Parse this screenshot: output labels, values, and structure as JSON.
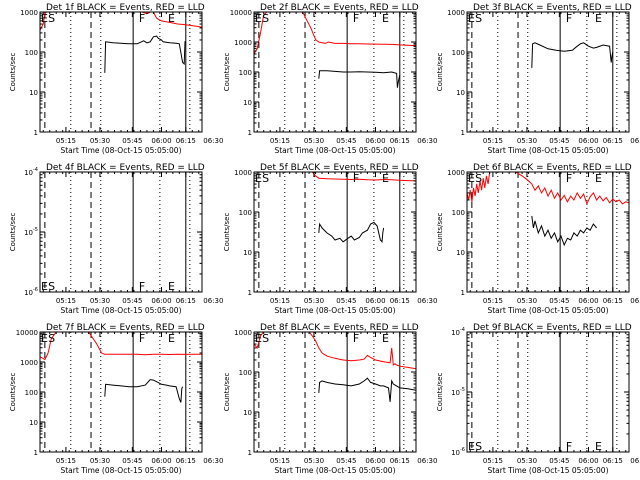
{
  "figure": {
    "shared": {
      "x_axis_label": "Start Time (08-Oct-15 05:05:00)",
      "x_tick_labels": [
        "05:15",
        "05:30",
        "05:45",
        "06:00",
        "06:15",
        "06:30"
      ],
      "y_axis_label": "Counts/sec"
    },
    "colors": {
      "events": "#000000",
      "lld": "#ff0000",
      "frame": "#000000",
      "background": "#ffffff"
    }
  },
  "chart_data": [
    {
      "type": "line",
      "id": "det1f",
      "title": "Det 1f BLACK = Events, RED = LLD",
      "xlim": [
        0,
        100
      ],
      "y_scale": "log",
      "ylim": [
        1,
        1000
      ],
      "y_tick_labels": [
        "1",
        "10",
        "100",
        "1000"
      ],
      "markers": [
        {
          "label": "E",
          "x": 0
        },
        {
          "label": "S",
          "x": 5
        },
        {
          "label": "F",
          "x": 61
        },
        {
          "label": "E",
          "x": 79
        }
      ],
      "series": [
        {
          "color": "#ff0000",
          "x": [
            0,
            2,
            3,
            4,
            5,
            6,
            8,
            10,
            14,
            20,
            30,
            35,
            40,
            45,
            50,
            55,
            60,
            63,
            66,
            68,
            70,
            72,
            75,
            80,
            85,
            90,
            95,
            100
          ],
          "y": [
            350,
            500,
            900,
            1000,
            1000,
            1000,
            1000,
            1000,
            1000,
            1000,
            1000,
            1000,
            1000,
            1000,
            1000,
            1000,
            1000,
            1000,
            900,
            1100,
            1000,
            700,
            600,
            550,
            500,
            480,
            450,
            420
          ]
        },
        {
          "color": "#000000",
          "x": [
            40,
            40.5,
            45,
            50,
            55,
            60,
            62,
            64,
            66,
            68,
            70,
            72,
            73,
            75,
            76,
            80,
            84,
            86,
            88,
            89,
            89.5,
            90
          ],
          "y": [
            30,
            180,
            170,
            165,
            160,
            160,
            175,
            190,
            170,
            180,
            240,
            250,
            220,
            200,
            180,
            170,
            165,
            160,
            55,
            50,
            180,
            175
          ]
        }
      ]
    },
    {
      "type": "line",
      "id": "det2f",
      "title": "Det 2f BLACK = Events, RED = LLD",
      "xlim": [
        0,
        100
      ],
      "y_scale": "log",
      "ylim": [
        1,
        10000
      ],
      "y_tick_labels": [
        "1",
        "10",
        "100",
        "1000",
        "10000"
      ],
      "markers": [
        {
          "label": "E",
          "x": 0
        },
        {
          "label": "S",
          "x": 5
        },
        {
          "label": "F",
          "x": 61
        },
        {
          "label": "E",
          "x": 79
        }
      ],
      "series": [
        {
          "color": "#ff0000",
          "x": [
            0,
            2,
            4,
            6,
            8,
            10,
            15,
            20,
            25,
            30,
            35,
            38,
            40,
            42,
            44,
            46,
            48,
            50,
            55,
            60,
            65,
            70,
            75,
            80,
            85,
            90,
            95,
            100
          ],
          "y": [
            400,
            600,
            2000,
            8000,
            10000,
            10000,
            10000,
            10000,
            10000,
            10000,
            3000,
            1200,
            1000,
            950,
            900,
            1000,
            950,
            900,
            900,
            880,
            870,
            860,
            850,
            840,
            830,
            800,
            780,
            760
          ]
        },
        {
          "color": "#000000",
          "x": [
            40,
            40.5,
            45,
            50,
            55,
            60,
            65,
            70,
            75,
            80,
            85,
            88,
            88.5,
            89,
            90
          ],
          "y": [
            60,
            110,
            110,
            105,
            100,
            100,
            102,
            100,
            98,
            95,
            100,
            90,
            30,
            45,
            80
          ]
        }
      ]
    },
    {
      "type": "line",
      "id": "det3f",
      "title": "Det 3f BLACK = Events, RED = LLD",
      "xlim": [
        0,
        100
      ],
      "y_scale": "log",
      "ylim": [
        1,
        1000
      ],
      "y_tick_labels": [
        "1",
        "10",
        "100",
        "1000"
      ],
      "markers": [
        {
          "label": "E",
          "x": 0
        },
        {
          "label": "S",
          "x": 5
        },
        {
          "label": "F",
          "x": 61
        },
        {
          "label": "E",
          "x": 79
        }
      ],
      "series": [
        {
          "color": "#000000",
          "x": [
            40,
            40.5,
            42,
            45,
            50,
            55,
            60,
            65,
            68,
            70,
            72,
            75,
            78,
            80,
            84,
            88,
            89,
            89.5,
            90
          ],
          "y": [
            40,
            160,
            170,
            150,
            120,
            110,
            105,
            110,
            140,
            160,
            170,
            140,
            125,
            130,
            150,
            140,
            55,
            80,
            100
          ]
        }
      ]
    },
    {
      "type": "line",
      "id": "det4f",
      "title": "Det 4f BLACK = Events, RED = LLD",
      "xlim": [
        0,
        100
      ],
      "y_scale": "log",
      "ylim": [
        1e-06,
        0.0001
      ],
      "y_tick_labels": [
        "10^-6",
        "10^-5",
        "10^-4"
      ],
      "markers": [
        {
          "label": "E",
          "x": 0
        },
        {
          "label": "S",
          "x": 5
        },
        {
          "label": "F",
          "x": 61
        },
        {
          "label": "E",
          "x": 79
        }
      ],
      "series": []
    },
    {
      "type": "line",
      "id": "det5f",
      "title": "Det 5f BLACK = Events, RED = LLD",
      "xlim": [
        0,
        100
      ],
      "y_scale": "log",
      "ylim": [
        1,
        1000
      ],
      "y_tick_labels": [
        "1",
        "10",
        "100",
        "1000"
      ],
      "markers": [
        {
          "label": "E",
          "x": 0
        },
        {
          "label": "S",
          "x": 5
        },
        {
          "label": "F",
          "x": 61
        },
        {
          "label": "E",
          "x": 79
        }
      ],
      "series": [
        {
          "color": "#ff0000",
          "x": [
            36,
            38,
            40,
            45,
            50,
            55,
            60,
            65,
            70,
            75,
            80,
            85,
            90,
            95,
            100
          ],
          "y": [
            1000,
            800,
            700,
            680,
            670,
            660,
            650,
            660,
            640,
            630,
            650,
            640,
            620,
            610,
            600
          ]
        },
        {
          "color": "#000000",
          "x": [
            40,
            40.5,
            42,
            45,
            48,
            50,
            53,
            55,
            58,
            60,
            62,
            65,
            67,
            70,
            72,
            74,
            76,
            78,
            79,
            79.5,
            80
          ],
          "y": [
            30,
            50,
            40,
            30,
            25,
            20,
            22,
            18,
            22,
            25,
            20,
            23,
            30,
            35,
            50,
            55,
            45,
            20,
            18,
            30,
            40
          ]
        }
      ]
    },
    {
      "type": "line",
      "id": "det6f",
      "title": "Det 6f BLACK = Events, RED = LLD",
      "xlim": [
        0,
        100
      ],
      "y_scale": "log",
      "ylim": [
        1,
        1000
      ],
      "y_tick_labels": [
        "1",
        "10",
        "100",
        "1000"
      ],
      "markers": [
        {
          "label": "E",
          "x": 0
        },
        {
          "label": "S",
          "x": 5
        },
        {
          "label": "F",
          "x": 61
        },
        {
          "label": "E",
          "x": 79
        }
      ],
      "series": [
        {
          "color": "#ff0000",
          "x": [
            0,
            1,
            2,
            3,
            4,
            5,
            6,
            7,
            8,
            9,
            10,
            11,
            12,
            13,
            14,
            30,
            32,
            34,
            36,
            38,
            40,
            42,
            44,
            46,
            48,
            50,
            52,
            54,
            56,
            58,
            60,
            62,
            64,
            66,
            68,
            70,
            72,
            74,
            76,
            78,
            80,
            82,
            84,
            86,
            88,
            90,
            92,
            94,
            96,
            98,
            100
          ],
          "y": [
            300,
            200,
            350,
            180,
            400,
            250,
            500,
            300,
            600,
            350,
            700,
            400,
            800,
            500,
            1000,
            1000,
            900,
            800,
            700,
            600,
            500,
            350,
            450,
            300,
            400,
            250,
            350,
            220,
            300,
            200,
            260,
            180,
            250,
            200,
            300,
            220,
            280,
            160,
            240,
            300,
            200,
            250,
            190,
            230,
            170,
            210,
            180,
            200,
            160,
            180,
            170
          ]
        },
        {
          "color": "#000000",
          "x": [
            40,
            41,
            42,
            44,
            46,
            48,
            50,
            52,
            54,
            56,
            58,
            60,
            62,
            64,
            66,
            68,
            70,
            72,
            74,
            76,
            78,
            80
          ],
          "y": [
            80,
            40,
            60,
            30,
            45,
            25,
            35,
            22,
            30,
            18,
            25,
            15,
            22,
            20,
            30,
            25,
            35,
            30,
            40,
            35,
            50,
            40
          ]
        }
      ]
    },
    {
      "type": "line",
      "id": "det7f",
      "title": "Det 7f BLACK = Events, RED = LLD",
      "xlim": [
        0,
        100
      ],
      "y_scale": "log",
      "ylim": [
        1,
        10000
      ],
      "y_tick_labels": [
        "1",
        "10",
        "100",
        "1000",
        "10000"
      ],
      "markers": [
        {
          "label": "E",
          "x": 0
        },
        {
          "label": "S",
          "x": 5
        },
        {
          "label": "F",
          "x": 61
        },
        {
          "label": "E",
          "x": 79
        }
      ],
      "series": [
        {
          "color": "#ff0000",
          "x": [
            0,
            3,
            5,
            7,
            10,
            15,
            20,
            25,
            30,
            35,
            38,
            40,
            45,
            50,
            55,
            60,
            65,
            70,
            75,
            80,
            85,
            90,
            95,
            100
          ],
          "y": [
            1500,
            1200,
            2000,
            6000,
            10000,
            10000,
            10000,
            10000,
            10000,
            4000,
            2000,
            1800,
            1800,
            1800,
            1800,
            1800,
            1750,
            1800,
            1800,
            1780,
            1800,
            1790,
            1800,
            1800
          ]
        },
        {
          "color": "#000000",
          "x": [
            40,
            40.5,
            45,
            50,
            55,
            60,
            65,
            68,
            70,
            72,
            75,
            78,
            80,
            84,
            86,
            87,
            87.5,
            88
          ],
          "y": [
            70,
            180,
            170,
            160,
            150,
            150,
            170,
            260,
            250,
            220,
            180,
            170,
            160,
            150,
            60,
            45,
            130,
            150
          ]
        }
      ]
    },
    {
      "type": "line",
      "id": "det8f",
      "title": "Det 8f BLACK = Events, RED = LLD",
      "xlim": [
        0,
        100
      ],
      "y_scale": "log",
      "ylim": [
        1,
        1000
      ],
      "y_tick_labels": [
        "1",
        "10",
        "100",
        "1000"
      ],
      "markers": [
        {
          "label": "E",
          "x": 0
        },
        {
          "label": "S",
          "x": 5
        },
        {
          "label": "F",
          "x": 61
        },
        {
          "label": "E",
          "x": 79
        }
      ],
      "series": [
        {
          "color": "#ff0000",
          "x": [
            0,
            2,
            4,
            5,
            6,
            8,
            10,
            15,
            20,
            25,
            30,
            34,
            36,
            38,
            40,
            42,
            45,
            50,
            55,
            60,
            65,
            68,
            70,
            72,
            75,
            80,
            84,
            85,
            86,
            87,
            88,
            90,
            95,
            100
          ],
          "y": [
            500,
            400,
            800,
            900,
            1000,
            1000,
            1000,
            1000,
            1000,
            1000,
            1000,
            1000,
            800,
            600,
            400,
            300,
            250,
            220,
            200,
            190,
            200,
            210,
            260,
            230,
            200,
            180,
            170,
            400,
            150,
            160,
            150,
            140,
            130,
            120
          ]
        },
        {
          "color": "#000000",
          "x": [
            40,
            40.5,
            42,
            45,
            50,
            55,
            60,
            65,
            68,
            70,
            72,
            75,
            78,
            80,
            83,
            84,
            85,
            86,
            88,
            90,
            95,
            100
          ],
          "y": [
            30,
            55,
            60,
            55,
            50,
            48,
            45,
            50,
            60,
            70,
            55,
            50,
            45,
            45,
            40,
            18,
            60,
            50,
            45,
            40,
            38,
            35
          ]
        }
      ]
    },
    {
      "type": "line",
      "id": "det9f",
      "title": "Det 9f BLACK = Events, RED = LLD",
      "xlim": [
        0,
        100
      ],
      "y_scale": "log",
      "ylim": [
        1e-06,
        0.0001
      ],
      "y_tick_labels": [
        "10^-6",
        "10^-5",
        "10^-4"
      ],
      "markers": [
        {
          "label": "E",
          "x": 0
        },
        {
          "label": "S",
          "x": 5
        },
        {
          "label": "F",
          "x": 61
        },
        {
          "label": "E",
          "x": 79
        }
      ],
      "series": []
    }
  ]
}
